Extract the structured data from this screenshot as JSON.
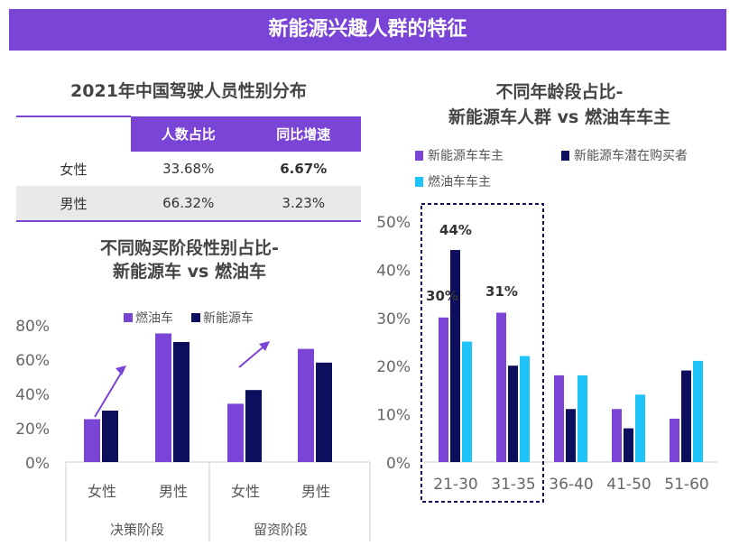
{
  "banner": "新能源兴趣人群的特征",
  "table": {
    "title": "2021年中国驾驶人员性别分布",
    "headers": [
      "",
      "人数占比",
      "同比增速"
    ],
    "rows": [
      {
        "label": "女性",
        "share": "33.68%",
        "growth": "6.67%"
      },
      {
        "label": "男性",
        "share": "66.32%",
        "growth": "3.23%"
      }
    ]
  },
  "colors": {
    "purple": "#7a44d6",
    "navy": "#0d0f5e",
    "cyan": "#1ec3f7"
  },
  "chart_data": [
    {
      "type": "bar",
      "title": "不同购买阶段性别占比-\n新能源车 vs 燃油车",
      "categories": [
        "女性",
        "男性",
        "女性",
        "男性"
      ],
      "groups": [
        "决策阶段",
        "留资阶段"
      ],
      "series": [
        {
          "name": "燃油车",
          "values": [
            25,
            75,
            34,
            66
          ]
        },
        {
          "name": "新能源车",
          "values": [
            30,
            70,
            42,
            58
          ]
        }
      ],
      "yticks": [
        "0%",
        "20%",
        "40%",
        "60%",
        "80%"
      ],
      "ylim": [
        0,
        80
      ],
      "legend": "top"
    },
    {
      "type": "bar",
      "title": "不同年龄段占比-\n新能源车人群 vs 燃油车车主",
      "categories": [
        "21-30",
        "31-35",
        "36-40",
        "41-50",
        "51-60"
      ],
      "series": [
        {
          "name": "新能源车车主",
          "values": [
            30,
            31,
            18,
            11,
            9
          ]
        },
        {
          "name": "新能源车潜在购买者",
          "values": [
            44,
            20,
            11,
            7,
            19
          ]
        },
        {
          "name": "燃油车车主",
          "values": [
            25,
            22,
            18,
            14,
            21
          ]
        }
      ],
      "data_labels": [
        "30%",
        "44%",
        "31%"
      ],
      "yticks": [
        "0%",
        "10%",
        "20%",
        "30%",
        "40%",
        "50%"
      ],
      "ylim": [
        0,
        50
      ],
      "legend": "top",
      "highlight": [
        "21-30",
        "31-35"
      ]
    }
  ]
}
